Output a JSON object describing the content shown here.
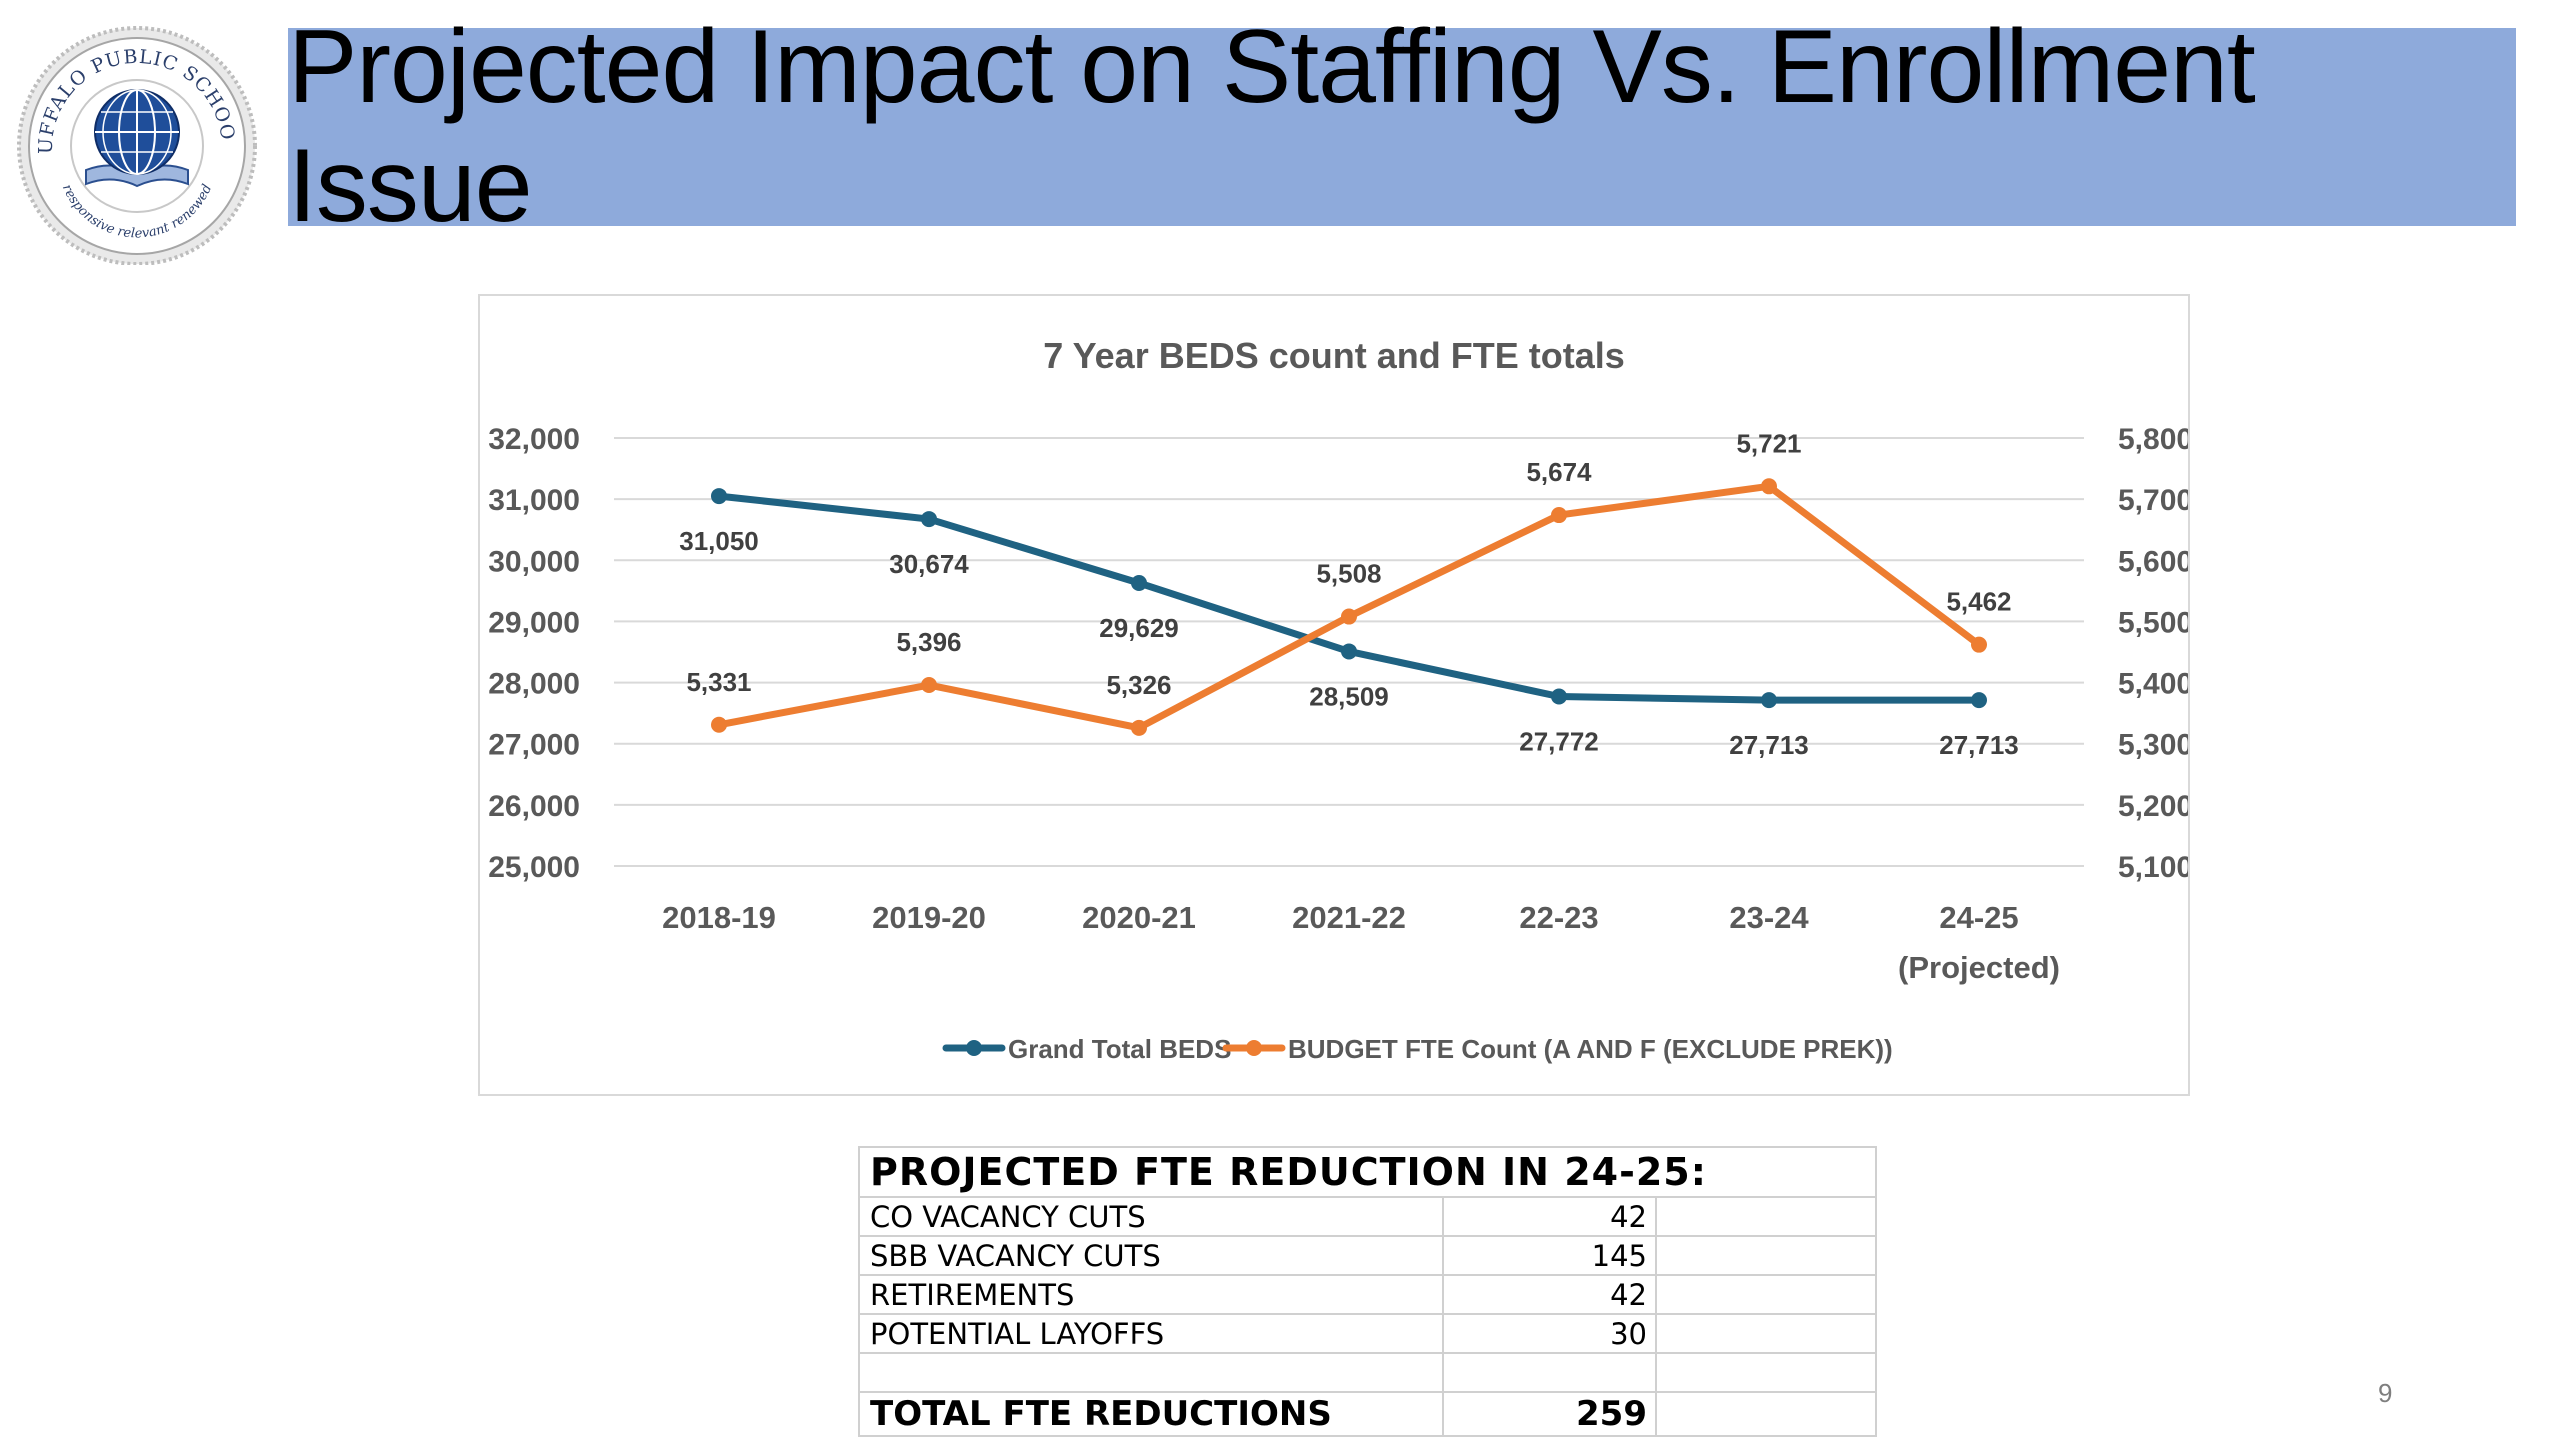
{
  "slide": {
    "title": "Projected Impact on Staffing Vs. Enrollment Issue",
    "page_number": "9",
    "logo": {
      "text_top": "BUFFALO PUBLIC SCHOOLS",
      "text_bottom": "responsive relevant renewed"
    }
  },
  "chart_data": {
    "type": "line",
    "title": "7 Year BEDS count and FTE totals",
    "categories": [
      "2018-19",
      "2019-20",
      "2020-21",
      "2021-22",
      "22-23",
      "23-24",
      "24-25 (Projected)"
    ],
    "category_lines": [
      [
        "2018-19"
      ],
      [
        "2019-20"
      ],
      [
        "2020-21"
      ],
      [
        "2021-22"
      ],
      [
        "22-23"
      ],
      [
        "23-24"
      ],
      [
        "24-25",
        "(Projected)"
      ]
    ],
    "series": [
      {
        "name": "Grand Total BEDS",
        "axis": "left",
        "color": "#1f6282",
        "values": [
          31050,
          30674,
          29629,
          28509,
          27772,
          27713,
          27713
        ],
        "labels": [
          "31,050",
          "30,674",
          "29,629",
          "28,509",
          "27,772",
          "27,713",
          "27,713"
        ]
      },
      {
        "name": "BUDGET FTE Count (A AND F (EXCLUDE PREK))",
        "axis": "right",
        "color": "#ed7d31",
        "values": [
          5331,
          5396,
          5326,
          5508,
          5674,
          5721,
          5462
        ],
        "labels": [
          "5,331",
          "5,396",
          "5,326",
          "5,508",
          "5,674",
          "5,721",
          "5,462"
        ]
      }
    ],
    "ylim_left": [
      25000,
      32000
    ],
    "ylim_right": [
      5100,
      5800
    ],
    "yticks_left": [
      "25,000",
      "26,000",
      "27,000",
      "28,000",
      "29,000",
      "30,000",
      "31,000",
      "32,000"
    ],
    "yticks_right": [
      "5,100",
      "5,200",
      "5,300",
      "5,400",
      "5,500",
      "5,600",
      "5,700",
      "5,800"
    ],
    "grid": true,
    "legend_position": "bottom"
  },
  "reduction_table": {
    "header": "PROJECTED FTE REDUCTION IN 24-25:",
    "rows": [
      {
        "label": "CO VACANCY CUTS",
        "value": "42"
      },
      {
        "label": "SBB VACANCY CUTS",
        "value": "145"
      },
      {
        "label": "RETIREMENTS",
        "value": "42"
      },
      {
        "label": "POTENTIAL LAYOFFS",
        "value": "30"
      }
    ],
    "total_label": "TOTAL FTE REDUCTIONS",
    "total_value": "259"
  }
}
